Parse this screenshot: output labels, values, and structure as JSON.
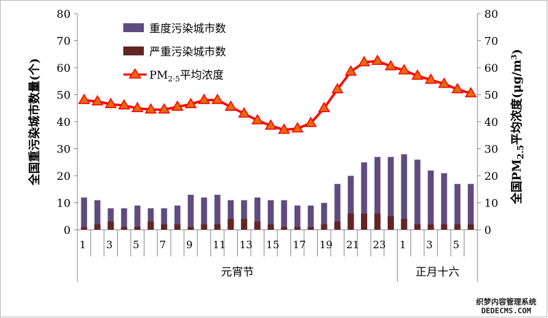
{
  "chart_data": {
    "type": "bar",
    "categories": [
      "1",
      "2",
      "3",
      "4",
      "5",
      "6",
      "7",
      "8",
      "9",
      "10",
      "11",
      "12",
      "13",
      "14",
      "15",
      "16",
      "17",
      "18",
      "19",
      "20",
      "21",
      "22",
      "23",
      "24",
      "1",
      "2",
      "3",
      "4",
      "5",
      "6"
    ],
    "category_tick_labels": [
      "1",
      "3",
      "5",
      "7",
      "9",
      "11",
      "13",
      "15",
      "17",
      "19",
      "21",
      "23",
      "1",
      "3",
      "5"
    ],
    "groups": [
      {
        "label": "元宵节",
        "count": 24
      },
      {
        "label": "正月十六",
        "count": 6
      }
    ],
    "series": [
      {
        "name": "重度污染城市数",
        "type": "bar",
        "axis": "left",
        "color": "#5f4b7d",
        "values": [
          12,
          11,
          8,
          8,
          9,
          8,
          8,
          9,
          13,
          12,
          13,
          11,
          11,
          12,
          11,
          11,
          9,
          9,
          10,
          17,
          20,
          25,
          27,
          27,
          28,
          26,
          22,
          21,
          17,
          17
        ]
      },
      {
        "name": "严重污染城市数",
        "type": "bar",
        "axis": "left",
        "color": "#632523",
        "values": [
          1,
          2,
          3,
          1,
          1,
          3,
          2,
          2,
          1,
          2,
          2,
          4,
          4,
          3,
          2,
          1,
          1,
          1,
          2,
          3,
          6,
          6,
          6,
          5,
          4,
          2,
          2,
          2,
          2,
          2
        ]
      },
      {
        "name": "PM2.5平均浓度",
        "type": "line",
        "axis": "right",
        "color": "#ff0000",
        "marker": "triangle",
        "marker_color": "#e46c0a",
        "values": [
          48,
          47.5,
          46.5,
          46,
          45,
          44.5,
          44.5,
          45.5,
          46.5,
          48,
          48,
          45.5,
          43,
          40.5,
          38.5,
          37,
          37.5,
          39.5,
          45,
          52,
          58.5,
          62,
          62.5,
          60.5,
          59,
          57,
          55.5,
          54,
          52,
          50.5
        ]
      }
    ],
    "ylabel_left": "全国重污染城市数量(个)",
    "ylabel_right": "全国PM2.5平均浓度(μg/m3)",
    "ylim_left": [
      0,
      80
    ],
    "ylim_right": [
      0,
      80
    ],
    "yticks": [
      "0",
      "10",
      "20",
      "30",
      "40",
      "50",
      "60",
      "70",
      "80"
    ],
    "legend_placement": "top-left",
    "grid": false
  },
  "legend": {
    "heavy": "重度污染城市数",
    "severe": "严重污染城市数",
    "pm_prefix": "PM",
    "pm_sub": "2·5",
    "pm_suffix": "平均浓度"
  },
  "axis_titles": {
    "left": "全国重污染城市数量(个)",
    "right_prefix": "全国PM",
    "right_sub": "2.5",
    "right_mid": "平均浓度(μg/m",
    "right_sup": "3",
    "right_end": ")"
  },
  "watermark": {
    "line1": "织梦内容管理系统",
    "line2": "DEDECMS.COM"
  }
}
